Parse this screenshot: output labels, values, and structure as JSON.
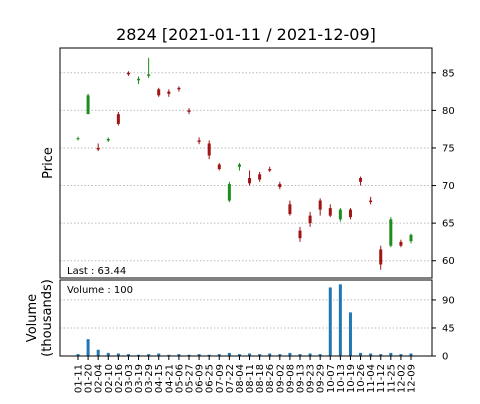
{
  "chart_data": {
    "type": "candlestick",
    "title": "2824   [2021-01-11 / 2021-12-09]",
    "ylabel": "Price",
    "volume_label": [
      "Volume",
      "(thousands)"
    ],
    "last_label": "Last : 63.44",
    "volume_note": "Volume : 100",
    "categories": [
      "01-11",
      "01-20",
      "02-04",
      "02-10",
      "02-16",
      "03-03",
      "03-19",
      "03-29",
      "04-15",
      "04-21",
      "05-06",
      "05-27",
      "06-09",
      "06-25",
      "07-09",
      "07-22",
      "08-04",
      "08-11",
      "08-18",
      "08-26",
      "09-02",
      "09-08",
      "09-13",
      "09-23",
      "09-29",
      "10-07",
      "10-13",
      "10-19",
      "10-26",
      "11-04",
      "11-12",
      "11-25",
      "12-02",
      "12-09"
    ],
    "open": [
      76.2,
      79.5,
      75.0,
      76.0,
      79.5,
      85.0,
      84.0,
      84.6,
      82.8,
      82.5,
      83.0,
      80.0,
      76.0,
      75.6,
      72.8,
      68.0,
      72.5,
      71.0,
      71.5,
      72.2,
      70.2,
      67.5,
      64.0,
      66.0,
      68.0,
      67.0,
      65.5,
      66.8,
      71.0,
      68.0,
      61.5,
      62.0,
      62.5,
      62.6
    ],
    "high": [
      76.5,
      82.2,
      75.6,
      76.4,
      79.8,
      85.2,
      84.5,
      87.0,
      83.0,
      82.8,
      83.2,
      80.3,
      76.4,
      76.0,
      73.0,
      70.5,
      73.0,
      72.0,
      71.8,
      72.5,
      70.5,
      68.0,
      64.5,
      66.5,
      68.3,
      67.5,
      67.0,
      67.0,
      71.2,
      68.5,
      62.0,
      65.8,
      62.8,
      63.6
    ],
    "low": [
      76.0,
      79.5,
      74.6,
      75.8,
      78.0,
      84.6,
      83.5,
      84.3,
      81.8,
      81.8,
      82.5,
      79.5,
      75.5,
      73.5,
      72.0,
      67.8,
      72.0,
      70.0,
      70.5,
      71.8,
      69.5,
      66.0,
      62.5,
      64.5,
      66.0,
      65.8,
      65.2,
      65.5,
      70.0,
      67.5,
      58.8,
      61.8,
      61.8,
      62.3
    ],
    "close": [
      76.3,
      82.0,
      74.8,
      76.2,
      78.2,
      84.8,
      84.2,
      84.8,
      82.0,
      82.2,
      82.8,
      79.8,
      75.8,
      74.0,
      72.2,
      70.2,
      72.8,
      70.3,
      70.8,
      72.0,
      69.8,
      66.2,
      63.0,
      65.0,
      66.8,
      66.0,
      66.8,
      65.8,
      70.5,
      67.8,
      59.5,
      65.5,
      62.0,
      63.44
    ],
    "volume": [
      3,
      27,
      10,
      5,
      4,
      3,
      2,
      3,
      4,
      2,
      3,
      2,
      3,
      2,
      3,
      5,
      3,
      4,
      3,
      4,
      3,
      5,
      3,
      4,
      3,
      110,
      115,
      70,
      5,
      4,
      3,
      5,
      3,
      4
    ],
    "up_color": "#1e8c1e",
    "down_color": "#a01414",
    "volume_color": "#1f77b4",
    "ylim": [
      57.7,
      88.3
    ],
    "yticks": [
      60,
      65,
      70,
      75,
      80,
      85
    ],
    "volume_ylim": [
      0,
      122
    ],
    "volume_yticks": [
      0,
      45,
      90
    ],
    "grid": true
  }
}
